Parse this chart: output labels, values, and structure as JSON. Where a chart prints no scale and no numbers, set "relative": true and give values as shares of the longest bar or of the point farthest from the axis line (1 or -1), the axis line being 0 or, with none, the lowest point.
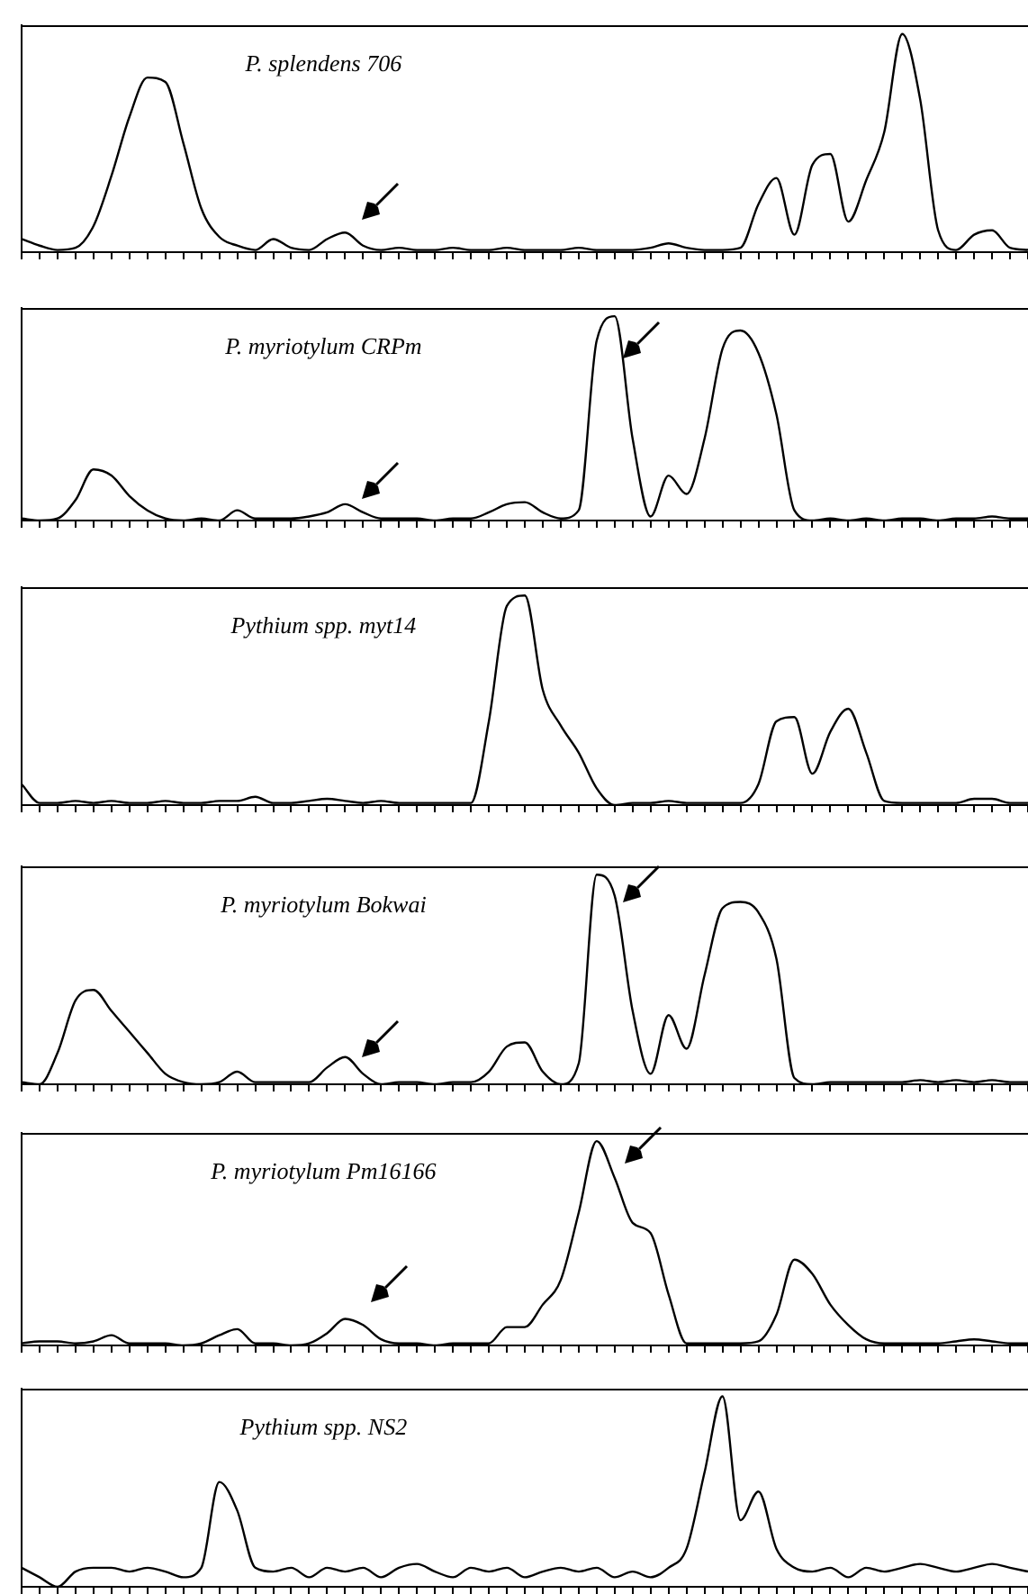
{
  "chart_data": [
    {
      "type": "line",
      "title": "P. splendens 706",
      "relative": true,
      "tick_labels": false,
      "grid": false,
      "legend": false,
      "marker": "none",
      "color": "#000000",
      "categories": [
        null,
        null,
        null,
        null,
        null,
        null,
        null,
        null,
        null,
        null,
        null,
        null,
        null,
        null,
        null,
        null,
        null,
        null,
        null,
        null,
        null,
        null,
        null,
        null,
        null,
        null,
        null,
        null,
        null,
        null,
        null,
        null,
        null,
        null,
        null,
        null,
        null,
        null,
        null,
        null,
        null,
        null,
        null,
        null,
        null,
        null,
        null,
        null,
        null,
        null,
        null,
        null,
        null,
        null,
        null,
        null,
        null
      ],
      "values": [
        0.06,
        0.03,
        0.01,
        0.02,
        0.12,
        0.35,
        0.62,
        0.8,
        0.78,
        0.5,
        0.2,
        0.07,
        0.03,
        0.01,
        0.06,
        0.02,
        0.01,
        0.06,
        0.09,
        0.03,
        0.01,
        0.02,
        0.01,
        0.01,
        0.02,
        0.01,
        0.01,
        0.02,
        0.01,
        0.01,
        0.01,
        0.02,
        0.01,
        0.01,
        0.01,
        0.02,
        0.04,
        0.02,
        0.01,
        0.01,
        0.02,
        0.22,
        0.34,
        0.08,
        0.4,
        0.45,
        0.14,
        0.33,
        0.55,
        1,
        0.7,
        0.1,
        0.01,
        0.08,
        0.1,
        0.02,
        0.01
      ]
    },
    {
      "type": "line",
      "title": "P. myriotylum CRPm",
      "relative": true,
      "tick_labels": false,
      "grid": false,
      "legend": false,
      "marker": "none",
      "color": "#000000",
      "categories": [
        null,
        null,
        null,
        null,
        null,
        null,
        null,
        null,
        null,
        null,
        null,
        null,
        null,
        null,
        null,
        null,
        null,
        null,
        null,
        null,
        null,
        null,
        null,
        null,
        null,
        null,
        null,
        null,
        null,
        null,
        null,
        null,
        null,
        null,
        null,
        null,
        null,
        null,
        null,
        null,
        null,
        null,
        null,
        null,
        null,
        null,
        null,
        null,
        null,
        null,
        null,
        null,
        null,
        null,
        null,
        null,
        null
      ],
      "values": [
        0.01,
        0,
        0.01,
        0.1,
        0.25,
        0.22,
        0.12,
        0.05,
        0.01,
        0,
        0.01,
        0,
        0.05,
        0.01,
        0.01,
        0.01,
        0.02,
        0.04,
        0.08,
        0.04,
        0.01,
        0.01,
        0.01,
        0,
        0.01,
        0.01,
        0.04,
        0.08,
        0.09,
        0.04,
        0.01,
        0.05,
        0.88,
        1,
        0.4,
        0.02,
        0.22,
        0.13,
        0.4,
        0.84,
        0.93,
        0.82,
        0.52,
        0.05,
        0,
        0.01,
        0,
        0.01,
        0,
        0.01,
        0.01,
        0,
        0.01,
        0.01,
        0.02,
        0.01,
        0.01
      ]
    },
    {
      "type": "line",
      "title": "Pythium spp. myt14",
      "relative": true,
      "tick_labels": false,
      "grid": false,
      "legend": false,
      "marker": "none",
      "color": "#000000",
      "categories": [
        null,
        null,
        null,
        null,
        null,
        null,
        null,
        null,
        null,
        null,
        null,
        null,
        null,
        null,
        null,
        null,
        null,
        null,
        null,
        null,
        null,
        null,
        null,
        null,
        null,
        null,
        null,
        null,
        null,
        null,
        null,
        null,
        null,
        null,
        null,
        null,
        null,
        null,
        null,
        null,
        null,
        null,
        null,
        null,
        null,
        null,
        null,
        null,
        null,
        null,
        null,
        null,
        null,
        null,
        null,
        null,
        null
      ],
      "values": [
        0.1,
        0.01,
        0.01,
        0.02,
        0.01,
        0.02,
        0.01,
        0.01,
        0.02,
        0.01,
        0.01,
        0.02,
        0.02,
        0.04,
        0.01,
        0.01,
        0.02,
        0.03,
        0.02,
        0.01,
        0.02,
        0.01,
        0.01,
        0.01,
        0.01,
        0.01,
        0.4,
        0.95,
        1,
        0.55,
        0.38,
        0.25,
        0.08,
        0,
        0.01,
        0.01,
        0.02,
        0.01,
        0.01,
        0.01,
        0.01,
        0.1,
        0.4,
        0.42,
        0.15,
        0.35,
        0.46,
        0.25,
        0.02,
        0.01,
        0.01,
        0.01,
        0.01,
        0.03,
        0.03,
        0.01,
        0.01
      ]
    },
    {
      "type": "line",
      "title": "P. myriotylum Bokwai",
      "relative": true,
      "tick_labels": false,
      "grid": false,
      "legend": false,
      "marker": "none",
      "color": "#000000",
      "categories": [
        null,
        null,
        null,
        null,
        null,
        null,
        null,
        null,
        null,
        null,
        null,
        null,
        null,
        null,
        null,
        null,
        null,
        null,
        null,
        null,
        null,
        null,
        null,
        null,
        null,
        null,
        null,
        null,
        null,
        null,
        null,
        null,
        null,
        null,
        null,
        null,
        null,
        null,
        null,
        null,
        null,
        null,
        null,
        null,
        null,
        null,
        null,
        null,
        null,
        null,
        null,
        null,
        null,
        null,
        null,
        null,
        null
      ],
      "values": [
        0.01,
        0,
        0.15,
        0.4,
        0.45,
        0.35,
        0.25,
        0.15,
        0.05,
        0.01,
        0,
        0.01,
        0.06,
        0.01,
        0.01,
        0.01,
        0.01,
        0.08,
        0.13,
        0.05,
        0,
        0.01,
        0.01,
        0,
        0.01,
        0.01,
        0.06,
        0.18,
        0.2,
        0.06,
        0,
        0.1,
        1,
        0.9,
        0.35,
        0.05,
        0.33,
        0.17,
        0.52,
        0.84,
        0.87,
        0.82,
        0.6,
        0.03,
        0,
        0.01,
        0.01,
        0.01,
        0.01,
        0.01,
        0.02,
        0.01,
        0.02,
        0.01,
        0.02,
        0.01,
        0.01
      ]
    },
    {
      "type": "line",
      "title": "P. myriotylum Pm16166",
      "relative": true,
      "tick_labels": false,
      "grid": false,
      "legend": false,
      "marker": "none",
      "color": "#000000",
      "categories": [
        null,
        null,
        null,
        null,
        null,
        null,
        null,
        null,
        null,
        null,
        null,
        null,
        null,
        null,
        null,
        null,
        null,
        null,
        null,
        null,
        null,
        null,
        null,
        null,
        null,
        null,
        null,
        null,
        null,
        null,
        null,
        null,
        null,
        null,
        null,
        null,
        null,
        null,
        null,
        null,
        null,
        null,
        null,
        null,
        null,
        null,
        null,
        null,
        null,
        null,
        null,
        null,
        null,
        null,
        null,
        null,
        null
      ],
      "values": [
        0.01,
        0.02,
        0.02,
        0.01,
        0.02,
        0.05,
        0.01,
        0.01,
        0.01,
        0,
        0.01,
        0.05,
        0.08,
        0.01,
        0.01,
        0,
        0.01,
        0.06,
        0.13,
        0.1,
        0.03,
        0.01,
        0.01,
        0,
        0.01,
        0.01,
        0.01,
        0.09,
        0.09,
        0.2,
        0.32,
        0.65,
        1,
        0.82,
        0.6,
        0.55,
        0.25,
        0.01,
        0.01,
        0.01,
        0.01,
        0.02,
        0.15,
        0.42,
        0.35,
        0.2,
        0.1,
        0.03,
        0.01,
        0.01,
        0.01,
        0.01,
        0.02,
        0.03,
        0.02,
        0.01,
        0.01
      ]
    },
    {
      "type": "line",
      "title": "Pythium spp. NS2",
      "relative": true,
      "tick_labels": false,
      "grid": false,
      "legend": false,
      "marker": "none",
      "color": "#000000",
      "categories": [
        null,
        null,
        null,
        null,
        null,
        null,
        null,
        null,
        null,
        null,
        null,
        null,
        null,
        null,
        null,
        null,
        null,
        null,
        null,
        null,
        null,
        null,
        null,
        null,
        null,
        null,
        null,
        null,
        null,
        null,
        null,
        null,
        null,
        null,
        null,
        null,
        null,
        null,
        null,
        null,
        null,
        null,
        null,
        null,
        null,
        null,
        null,
        null,
        null,
        null,
        null,
        null,
        null,
        null,
        null,
        null,
        null
      ],
      "values": [
        0.1,
        0.05,
        0,
        0.08,
        0.1,
        0.1,
        0.08,
        0.1,
        0.08,
        0.05,
        0.1,
        0.55,
        0.4,
        0.1,
        0.08,
        0.1,
        0.05,
        0.1,
        0.08,
        0.1,
        0.05,
        0.1,
        0.12,
        0.08,
        0.05,
        0.1,
        0.08,
        0.1,
        0.05,
        0.08,
        0.1,
        0.08,
        0.1,
        0.05,
        0.08,
        0.05,
        0.1,
        0.2,
        0.6,
        1,
        0.35,
        0.5,
        0.2,
        0.1,
        0.08,
        0.1,
        0.05,
        0.1,
        0.08,
        0.1,
        0.12,
        0.1,
        0.08,
        0.1,
        0.12,
        0.1,
        0.08
      ]
    }
  ]
}
